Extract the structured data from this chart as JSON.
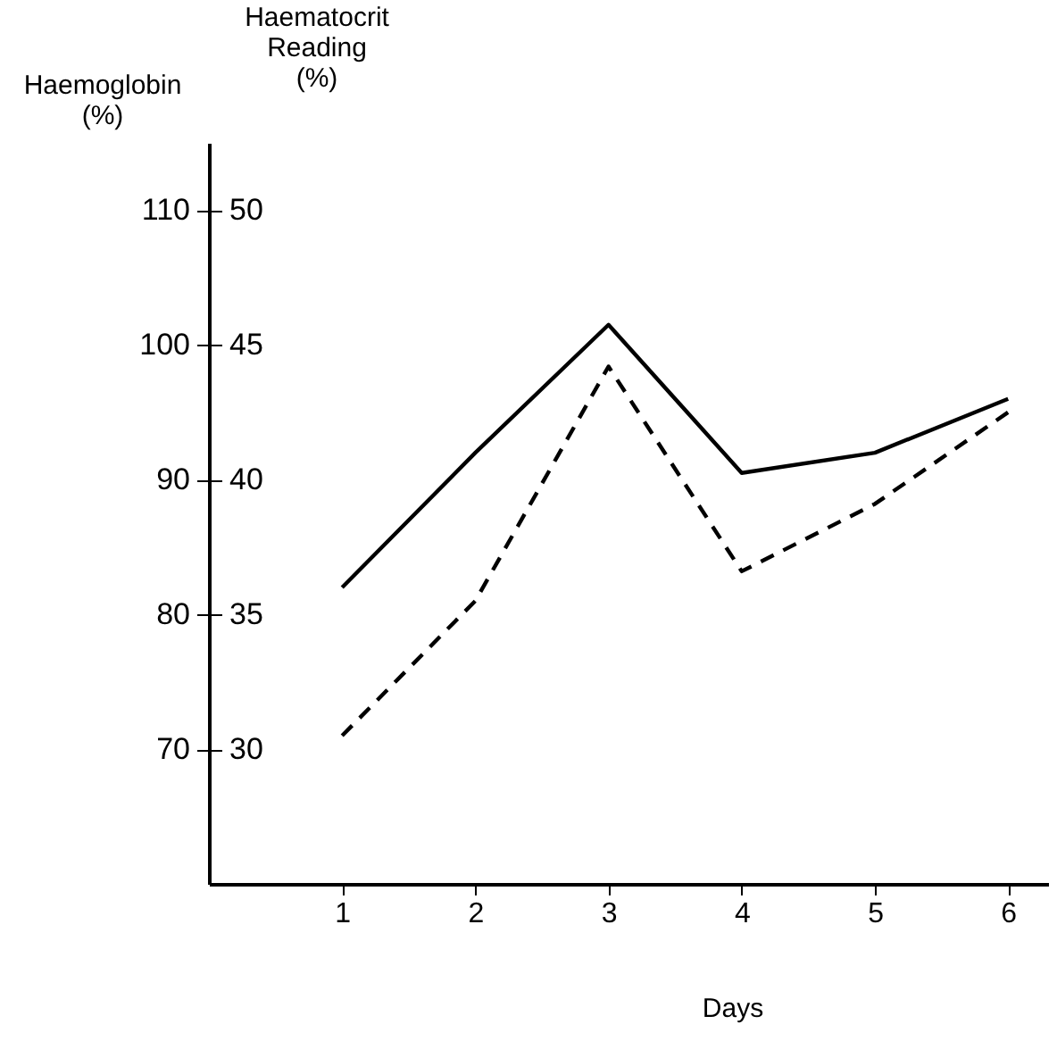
{
  "chart_data": {
    "type": "line",
    "xlabel": "Days",
    "ylabel": "Haemoglobin\n(%)",
    "y2label": "Haematocrit\nReading\n(%)",
    "x": [
      1,
      2,
      3,
      4,
      5,
      6
    ],
    "xlim": [
      0,
      6.3
    ],
    "xticks": [
      1,
      2,
      3,
      4,
      5,
      6
    ],
    "ylim": [
      60,
      115
    ],
    "yticks": [
      70,
      80,
      90,
      100,
      110
    ],
    "y2lim": [
      25,
      52.5
    ],
    "y2ticks": [
      30,
      35,
      40,
      45,
      50
    ],
    "grid": false,
    "series": [
      {
        "color": "#000000",
        "line_style": "solid",
        "values": [
          82,
          92,
          101.5,
          90.5,
          92,
          96
        ]
      },
      {
        "color": "#000000",
        "line_style": "dashed",
        "axis": "y2",
        "values": [
          30.5,
          35.5,
          44.2,
          36.6,
          39.1,
          42.5
        ]
      }
    ]
  }
}
